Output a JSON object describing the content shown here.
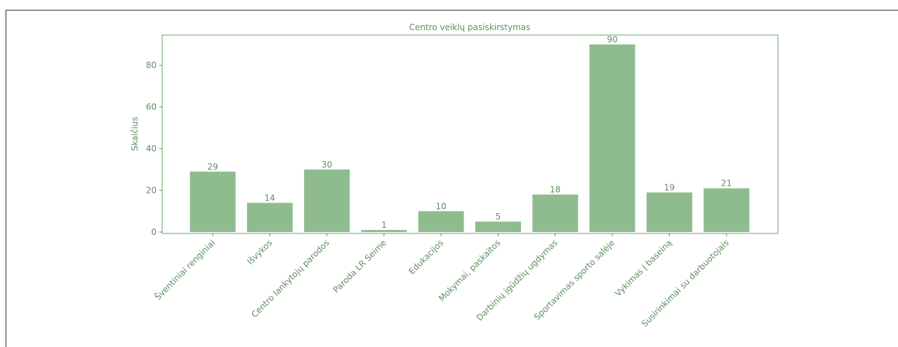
{
  "chart_data": {
    "type": "bar",
    "title": "Centro veiklų pasiskirstymas",
    "y_label": "Skaičius",
    "categories": [
      "Šventiniai renginiai",
      "Išvykos",
      "Centro lankytojų parodos",
      "Paroda LR Seime",
      "Edukacijos",
      "Mokymai, paskaitos",
      "Darbinių įgūdžių ugdymas",
      "Sportavimas sporto salėje",
      "Vykimas į baseiną",
      "Susirinkimai su darbuotojais"
    ],
    "values": [
      29,
      14,
      30,
      1,
      10,
      5,
      18,
      90,
      19,
      21
    ],
    "color": "#8fbc8f",
    "ylim": [
      0,
      94.5
    ],
    "yticks": [
      0,
      20,
      40,
      60,
      80
    ]
  }
}
